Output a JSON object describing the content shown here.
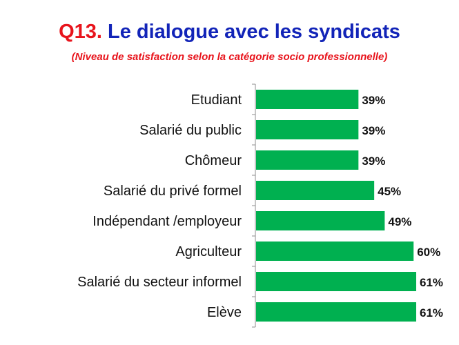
{
  "title": {
    "prefix": "Q13.",
    "text": " Le dialogue avec les syndicats",
    "subtitle": "(Niveau de satisfaction selon la catégorie socio professionnelle)"
  },
  "colors": {
    "title_prefix": "#e8141c",
    "title_text": "#1224b8",
    "subtitle": "#e8141c",
    "bar": "#00b050",
    "axis": "#8c8c8c"
  },
  "chart_data": {
    "type": "bar",
    "orientation": "horizontal",
    "title": "Q13. Le dialogue avec les syndicats",
    "subtitle": "(Niveau de satisfaction selon la catégorie socio professionnelle)",
    "categories": [
      "Etudiant",
      "Salarié du public",
      "Chômeur",
      "Salarié du privé formel",
      "Indépendant /employeur",
      "Agriculteur",
      "Salarié du secteur informel",
      "Elève"
    ],
    "values": [
      39,
      39,
      39,
      45,
      49,
      60,
      61,
      61
    ],
    "value_labels": [
      "39%",
      "39%",
      "39%",
      "45%",
      "49%",
      "60%",
      "61%",
      "61%"
    ],
    "unit": "%",
    "xlim": [
      0,
      61
    ],
    "grid": false,
    "legend": "none"
  }
}
